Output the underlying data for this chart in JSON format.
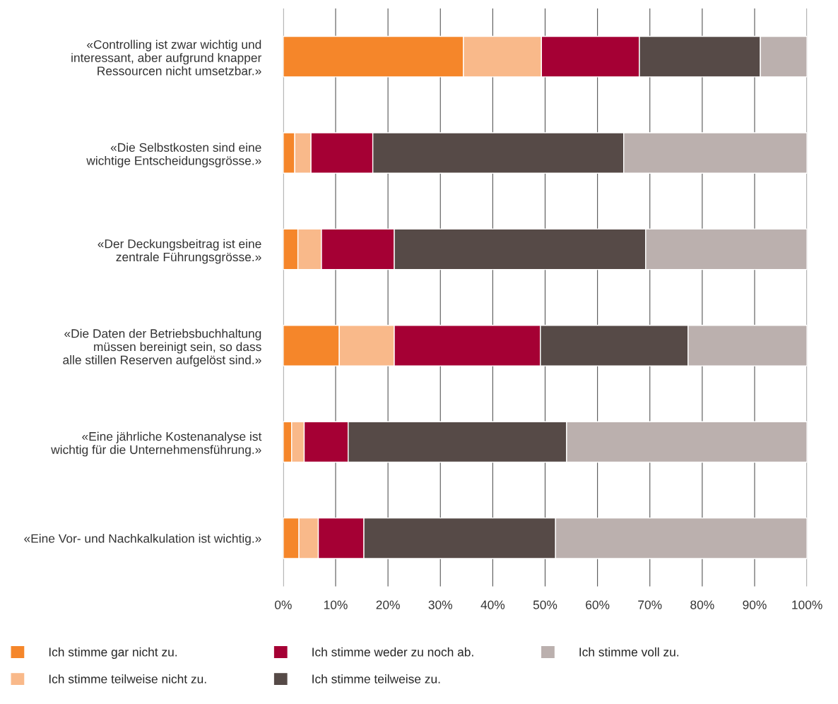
{
  "chart_data": {
    "type": "bar",
    "orientation": "horizontal",
    "stacked": true,
    "categories": [
      "«Controlling ist zwar wichtig und\ninteressant, aber aufgrund knapper\nRessourcen nicht umsetzbar.»",
      "«Die Selbstkosten sind eine\nwichtige Entscheidungsgrösse.»",
      "«Der Deckungsbeitrag ist eine\nzentrale Führungsgrösse.»",
      "«Die Daten der Betriebsbuchhaltung\nmüssen bereinigt sein, so dass\nalle stillen Reserven aufgelöst sind.»",
      "«Eine jährliche Kostenanalyse ist\nwichtig für die Unternehmensführung.»",
      "«Eine Vor- und Nachkalkulation ist wichtig.»"
    ],
    "series": [
      {
        "name": "Ich stimme gar nicht zu.",
        "color": "#f5862a",
        "values": [
          34.4,
          2.2,
          2.8,
          10.7,
          1.6,
          3.0
        ]
      },
      {
        "name": "Ich stimme teilweise nicht zu.",
        "color": "#f9b98a",
        "values": [
          14.9,
          3.1,
          4.5,
          10.5,
          2.4,
          3.7
        ]
      },
      {
        "name": "Ich stimme weder zu noch ab.",
        "color": "#a50034",
        "values": [
          18.7,
          11.8,
          13.9,
          27.9,
          8.4,
          8.7
        ]
      },
      {
        "name": "Ich stimme teilweise zu.",
        "color": "#564a47",
        "values": [
          23.1,
          47.9,
          48.0,
          28.2,
          41.7,
          36.6
        ]
      },
      {
        "name": "Ich stimme voll zu.",
        "color": "#bbb0ae",
        "values": [
          8.9,
          35.0,
          30.8,
          22.7,
          45.9,
          48.0
        ]
      }
    ],
    "xlim": [
      0,
      100
    ],
    "xticks": [
      {
        "value": 0,
        "label": "0%"
      },
      {
        "value": 10,
        "label": "10%"
      },
      {
        "value": 20,
        "label": "20%"
      },
      {
        "value": 30,
        "label": "30%"
      },
      {
        "value": 40,
        "label": "40%"
      },
      {
        "value": 50,
        "label": "50%"
      },
      {
        "value": 60,
        "label": "60%"
      },
      {
        "value": 70,
        "label": "70%"
      },
      {
        "value": 80,
        "label": "80%"
      },
      {
        "value": 90,
        "label": "90%"
      },
      {
        "value": 100,
        "label": "100%"
      }
    ],
    "grid": "x",
    "legend": "bottom"
  }
}
